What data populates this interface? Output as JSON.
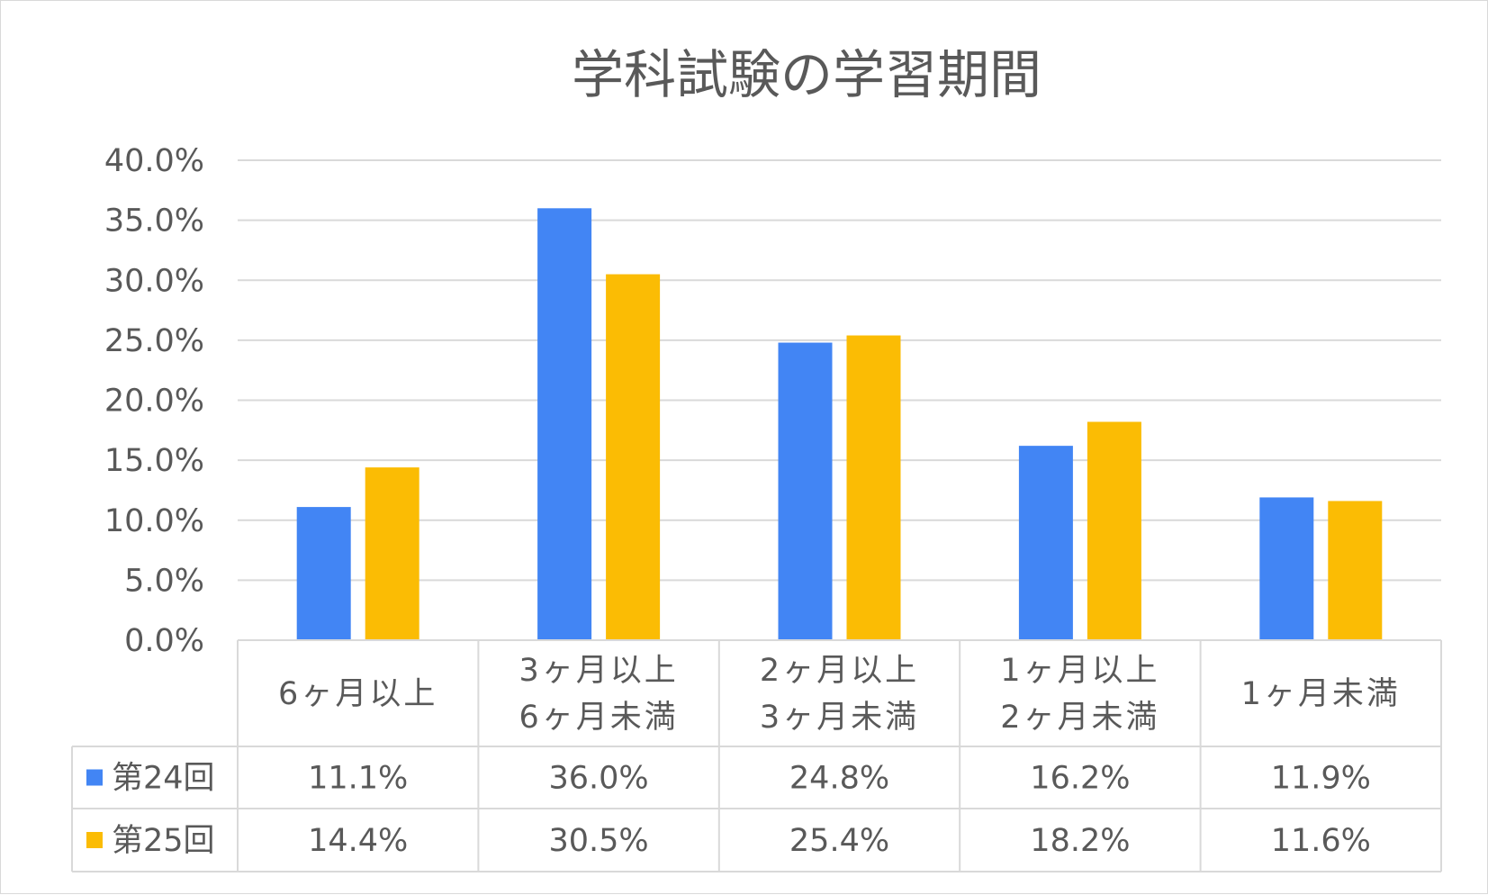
{
  "chart_data": {
    "type": "bar",
    "title": "学科試験の学習期間",
    "categories": [
      [
        "6ヶ月以上"
      ],
      [
        "3ヶ月以上",
        "6ヶ月未満"
      ],
      [
        "2ヶ月以上",
        "3ヶ月未満"
      ],
      [
        "1ヶ月以上",
        "2ヶ月未満"
      ],
      [
        "1ヶ月未満"
      ]
    ],
    "series": [
      {
        "name": "第24回",
        "color": "#4285F4",
        "values": [
          11.1,
          36.0,
          24.8,
          16.2,
          11.9
        ],
        "labels": [
          "11.1%",
          "36.0%",
          "24.8%",
          "16.2%",
          "11.9%"
        ]
      },
      {
        "name": "第25回",
        "color": "#FBBC04",
        "values": [
          14.4,
          30.5,
          25.4,
          18.2,
          11.6
        ],
        "labels": [
          "14.4%",
          "30.5%",
          "25.4%",
          "18.2%",
          "11.6%"
        ]
      }
    ],
    "ylim": [
      0,
      40
    ],
    "yticks": [
      "0.0%",
      "5.0%",
      "10.0%",
      "15.0%",
      "20.0%",
      "25.0%",
      "30.0%",
      "35.0%",
      "40.0%"
    ],
    "grid": true,
    "legend": "data-table",
    "data_table": true
  }
}
